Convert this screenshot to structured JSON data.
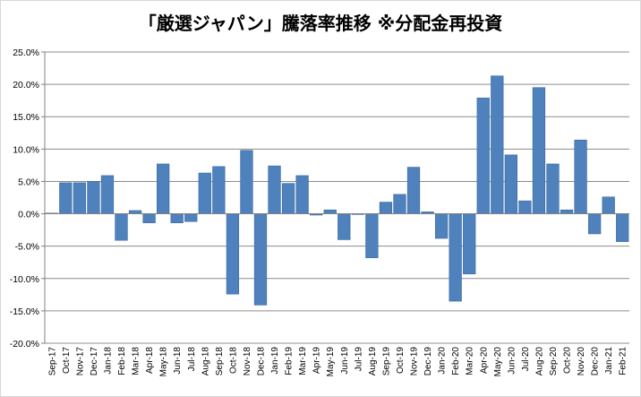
{
  "chart_data": {
    "type": "bar",
    "title": "「厳選ジャパン」騰落率推移 ※分配金再投資",
    "xlabel": "",
    "ylabel": "",
    "ylim": [
      -20,
      25
    ],
    "yticks": [
      25,
      20,
      15,
      10,
      5,
      0,
      -5,
      -10,
      -15,
      -20
    ],
    "ytick_labels": [
      "25.0%",
      "20.0%",
      "15.0%",
      "10.0%",
      "5.0%",
      "0.0%",
      "-5.0%",
      "-10.0%",
      "-15.0%",
      "-20.0%"
    ],
    "grid": true,
    "legend": "none",
    "bar_color": "#4f81bd",
    "categories": [
      "Sep-17",
      "Oct-17",
      "Nov-17",
      "Dec-17",
      "Jan-18",
      "Feb-18",
      "Mar-18",
      "Apr-18",
      "May-18",
      "Jun-18",
      "Jul-18",
      "Aug-18",
      "Sep-18",
      "Oct-18",
      "Nov-18",
      "Dec-18",
      "Jan-19",
      "Feb-19",
      "Mar-19",
      "Apr-19",
      "May-19",
      "Jun-19",
      "Jul-19",
      "Aug-19",
      "Sep-19",
      "Oct-19",
      "Nov-19",
      "Dec-19",
      "Jan-20",
      "Feb-20",
      "Mar-20",
      "Apr-20",
      "May-20",
      "Jun-20",
      "Jul-20",
      "Aug-20",
      "Sep-20",
      "Oct-20",
      "Nov-20",
      "Dec-20",
      "Jan-21",
      "Feb-21"
    ],
    "values": [
      0.1,
      4.8,
      4.8,
      5.0,
      5.9,
      -4.1,
      0.5,
      -1.4,
      7.7,
      -1.4,
      -1.2,
      6.3,
      7.3,
      -12.4,
      9.8,
      -14.1,
      7.4,
      4.7,
      5.9,
      -0.2,
      0.6,
      -4.0,
      -0.1,
      -6.8,
      1.8,
      3.0,
      7.2,
      0.3,
      -3.8,
      -13.5,
      -9.3,
      17.9,
      21.3,
      9.1,
      2.0,
      19.5,
      7.7,
      0.6,
      11.4,
      -3.1,
      2.6,
      -4.3
    ]
  }
}
